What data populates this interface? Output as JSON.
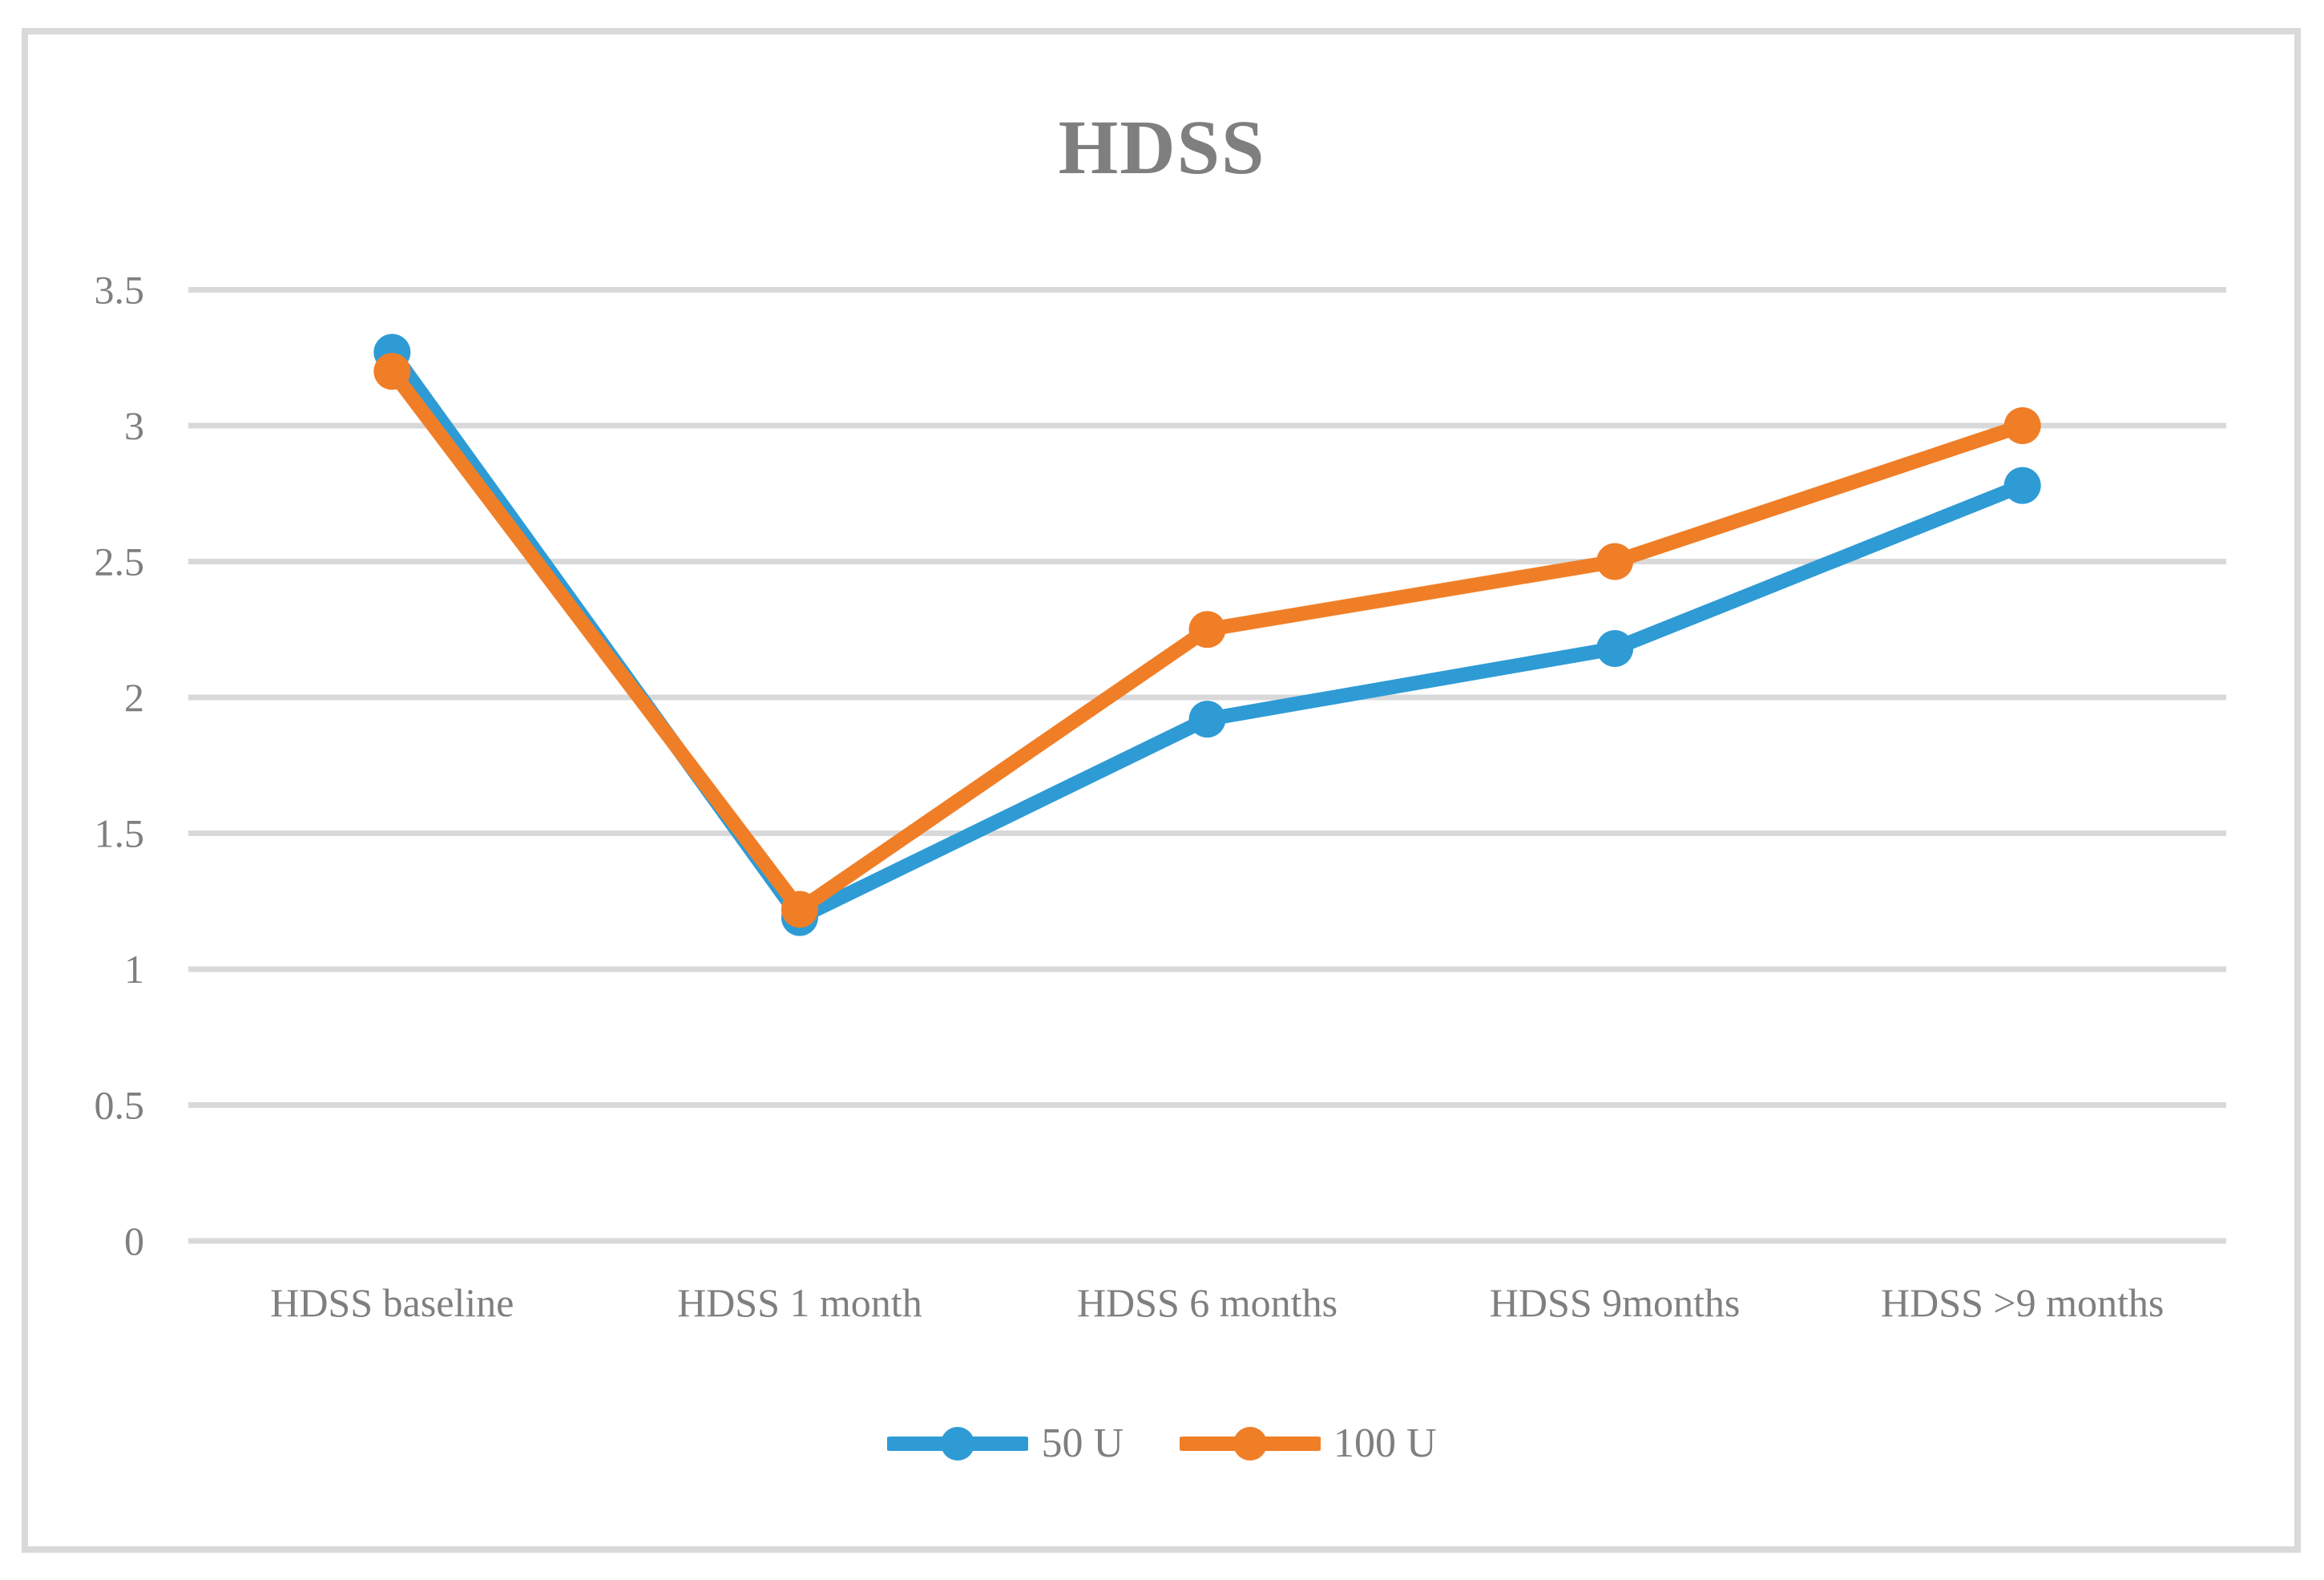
{
  "figure": {
    "background": "#ffffff",
    "border_color": "#d9d9d9"
  },
  "chart_data": {
    "type": "line",
    "title": "HDSS",
    "categories": [
      "HDSS baseline",
      "HDSS 1 month",
      "HDSS 6 months",
      "HDSS 9months",
      "HDSS >9 months"
    ],
    "series": [
      {
        "name": "50 U",
        "color": "#2e9bd5",
        "values": [
          3.27,
          1.19,
          1.92,
          2.18,
          2.78
        ]
      },
      {
        "name": "100 U",
        "color": "#f07e27",
        "values": [
          3.2,
          1.22,
          2.25,
          2.5,
          3.0
        ]
      }
    ],
    "y_ticks": [
      0,
      0.5,
      1,
      1.5,
      2,
      2.5,
      3,
      3.5
    ],
    "ylim": [
      0,
      3.5
    ],
    "grid": true,
    "gridline_color": "#d9d9d9",
    "text_color": "#7f7f7f",
    "legend_position": "bottom"
  }
}
